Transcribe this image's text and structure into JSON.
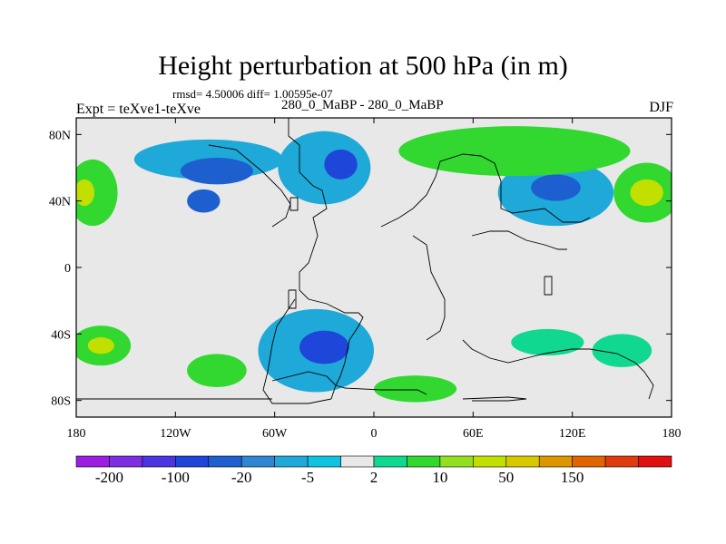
{
  "chart_data": {
    "type": "heatmap",
    "title": "Height perturbation at 500 hPa (in m)",
    "stats": "rmsd= 4.50006 diff= 1.00595e-07",
    "left_label": "Expt = teXve1-teXve",
    "center_label": "280_0_MaBP - 280_0_MaBP",
    "right_label": "DJF",
    "x_ticks": [
      "180",
      "120W",
      "60W",
      "0",
      "60E",
      "120E",
      "180"
    ],
    "y_ticks": [
      "80N",
      "40N",
      "0",
      "40S",
      "80S"
    ],
    "xlim": [
      -180,
      180
    ],
    "ylim": [
      -90,
      90
    ],
    "colorbar": {
      "labels": [
        "-200",
        "-100",
        "-20",
        "-5",
        "2",
        "10",
        "50",
        "150"
      ],
      "colors": [
        "#9a1fe0",
        "#7d2fe0",
        "#4c35e0",
        "#1e46d8",
        "#1e5fd0",
        "#2e86d2",
        "#1fa9d8",
        "#10c4e0",
        "#e8e8e8",
        "#10d890",
        "#32d830",
        "#92e020",
        "#c2e000",
        "#d8c800",
        "#dc9600",
        "#e06400",
        "#e03a10",
        "#e01010"
      ]
    },
    "anomaly_regions": [
      {
        "lon": -100,
        "lat": 65,
        "rx": 45,
        "ry": 12,
        "level": -5
      },
      {
        "lon": -95,
        "lat": 58,
        "rx": 22,
        "ry": 8,
        "level": -20
      },
      {
        "lon": -30,
        "lat": 60,
        "rx": 28,
        "ry": 22,
        "level": -5
      },
      {
        "lon": -20,
        "lat": 62,
        "rx": 10,
        "ry": 9,
        "level": -100
      },
      {
        "lon": -103,
        "lat": 40,
        "rx": 10,
        "ry": 7,
        "level": -20
      },
      {
        "lon": -170,
        "lat": 45,
        "rx": 15,
        "ry": 20,
        "level": 10
      },
      {
        "lon": -175,
        "lat": 45,
        "rx": 6,
        "ry": 8,
        "level": 50
      },
      {
        "lon": 110,
        "lat": 45,
        "rx": 35,
        "ry": 20,
        "level": -5
      },
      {
        "lon": 110,
        "lat": 48,
        "rx": 15,
        "ry": 8,
        "level": -20
      },
      {
        "lon": 85,
        "lat": 70,
        "rx": 70,
        "ry": 15,
        "level": 10
      },
      {
        "lon": 165,
        "lat": 45,
        "rx": 20,
        "ry": 18,
        "level": 10
      },
      {
        "lon": 165,
        "lat": 45,
        "rx": 10,
        "ry": 8,
        "level": 50
      },
      {
        "lon": -35,
        "lat": -50,
        "rx": 35,
        "ry": 25,
        "level": -5
      },
      {
        "lon": -30,
        "lat": -48,
        "rx": 15,
        "ry": 10,
        "level": -100
      },
      {
        "lon": -165,
        "lat": -47,
        "rx": 18,
        "ry": 12,
        "level": 10
      },
      {
        "lon": -165,
        "lat": -47,
        "rx": 8,
        "ry": 5,
        "level": 50
      },
      {
        "lon": -95,
        "lat": -62,
        "rx": 18,
        "ry": 10,
        "level": 10
      },
      {
        "lon": 25,
        "lat": -73,
        "rx": 25,
        "ry": 8,
        "level": 10
      },
      {
        "lon": 105,
        "lat": -45,
        "rx": 22,
        "ry": 8,
        "level": 2
      },
      {
        "lon": 150,
        "lat": -50,
        "rx": 18,
        "ry": 10,
        "level": 2
      }
    ]
  }
}
